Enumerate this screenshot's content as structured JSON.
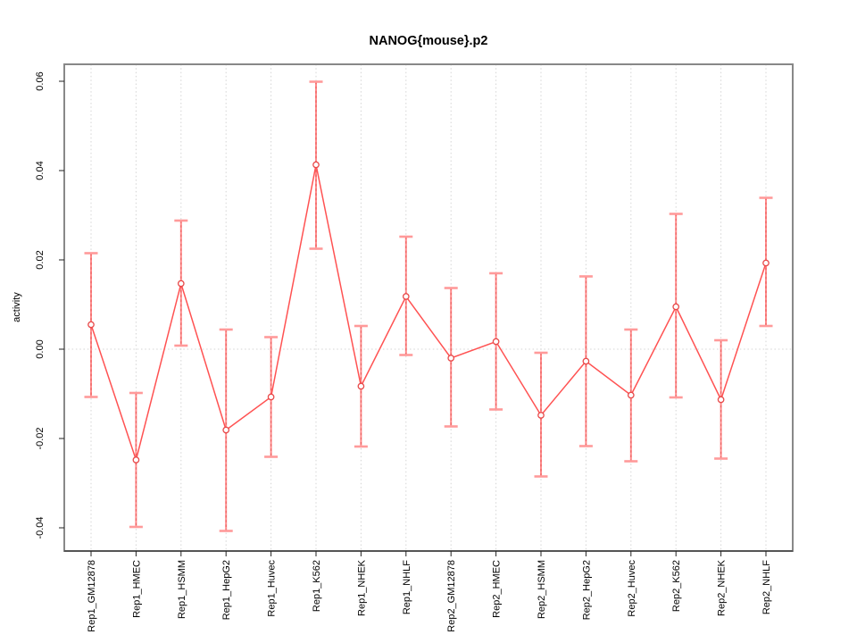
{
  "chart_data": {
    "type": "line",
    "title": "NANOG{mouse}.p2",
    "ylabel": "activity",
    "xlabel": "",
    "legend": "none",
    "grid": {
      "vertical_dotted_per_category": true,
      "horizontal_zero_line_dotted": true
    },
    "error_bars": true,
    "marker": "open-circle",
    "ylim": [
      -0.0452,
      0.0638
    ],
    "y_ticks": [
      {
        "value": 0.06,
        "label": "0.06"
      },
      {
        "value": 0.04,
        "label": "0.04"
      },
      {
        "value": 0.02,
        "label": "0.02"
      },
      {
        "value": 0.0,
        "label": "0.00"
      },
      {
        "value": -0.02,
        "label": "-0.02"
      },
      {
        "value": -0.04,
        "label": "-0.04"
      }
    ],
    "categories": [
      "Rep1_GM12878",
      "Rep1_HMEC",
      "Rep1_HSMM",
      "Rep1_HepG2",
      "Rep1_Huvec",
      "Rep1_K562",
      "Rep1_NHEK",
      "Rep1_NHLF",
      "Rep2_GM12878",
      "Rep2_HMEC",
      "Rep2_HSMM",
      "Rep2_HepG2",
      "Rep2_Huvec",
      "Rep2_K562",
      "Rep2_NHEK",
      "Rep2_NHLF"
    ],
    "points": [
      {
        "label": "Rep1_GM12878",
        "value": 0.0055,
        "upper": 0.0215,
        "lower": -0.0107
      },
      {
        "label": "Rep1_HMEC",
        "value": -0.0248,
        "upper": -0.0098,
        "lower": -0.0398
      },
      {
        "label": "Rep1_HSMM",
        "value": 0.0147,
        "upper": 0.0288,
        "lower": 0.0008
      },
      {
        "label": "Rep1_HepG2",
        "value": -0.0181,
        "upper": 0.0044,
        "lower": -0.0407
      },
      {
        "label": "Rep1_Huvec",
        "value": -0.0107,
        "upper": 0.0027,
        "lower": -0.0241
      },
      {
        "label": "Rep1_K562",
        "value": 0.0413,
        "upper": 0.0599,
        "lower": 0.0225
      },
      {
        "label": "Rep1_NHEK",
        "value": -0.0083,
        "upper": 0.0052,
        "lower": -0.0218
      },
      {
        "label": "Rep1_NHLF",
        "value": 0.0118,
        "upper": 0.0252,
        "lower": -0.0013
      },
      {
        "label": "Rep2_GM12878",
        "value": -0.002,
        "upper": 0.0137,
        "lower": -0.0173
      },
      {
        "label": "Rep2_HMEC",
        "value": 0.0017,
        "upper": 0.017,
        "lower": -0.0135
      },
      {
        "label": "Rep2_HSMM",
        "value": -0.0148,
        "upper": -0.0008,
        "lower": -0.0285
      },
      {
        "label": "Rep2_HepG2",
        "value": -0.0027,
        "upper": 0.0163,
        "lower": -0.0217
      },
      {
        "label": "Rep2_Huvec",
        "value": -0.0103,
        "upper": 0.0044,
        "lower": -0.0251
      },
      {
        "label": "Rep2_K562",
        "value": 0.0095,
        "upper": 0.0303,
        "lower": -0.0108
      },
      {
        "label": "Rep2_NHEK",
        "value": -0.0113,
        "upper": 0.002,
        "lower": -0.0245
      },
      {
        "label": "Rep2_NHLF",
        "value": 0.0193,
        "upper": 0.0339,
        "lower": 0.0052
      }
    ],
    "colors": {
      "line": "#ff5252",
      "marker": "#e84a4a",
      "error_stem": "#ff8c8c",
      "error_stem_dash": "#e85555",
      "error_cap": "#ff9a9a",
      "grid": "#d4d4d4",
      "frame": "#888888",
      "axis": "#222222",
      "text": "#000000",
      "background": "#ffffff"
    }
  }
}
